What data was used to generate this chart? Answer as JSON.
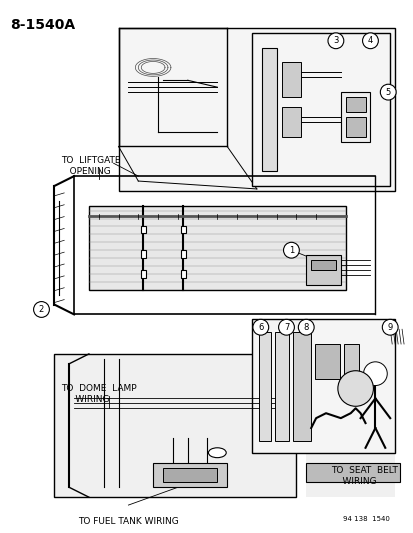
{
  "title": "8-1540A",
  "bg_color": "#ffffff",
  "diagram_color": "#000000",
  "ref_code": "94 138  1540",
  "labels": {
    "liftgate": "TO  LIFTGATE\n   OPENING",
    "dome": "TO  DOME  LAMP\n     WIRING",
    "fuel": "TO FUEL TANK WIRING",
    "seatbelt": "TO  SEAT  BELT\n    WIRING",
    "ref": "94 138  1540"
  },
  "callouts": [
    "1",
    "2",
    "3",
    "4",
    "5",
    "6",
    "7",
    "8",
    "9"
  ],
  "fig_width": 4.14,
  "fig_height": 5.33,
  "dpi": 100
}
